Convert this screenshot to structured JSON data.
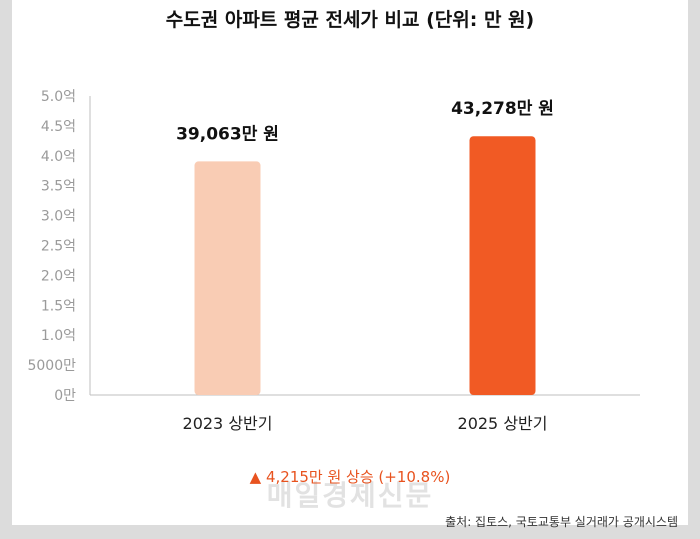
{
  "chart_data": {
    "type": "bar",
    "title": "수도권 아파트 평균 전세가 비교 (단위: 만 원)",
    "categories": [
      "2023 상반기",
      "2025 상반기"
    ],
    "values": [
      39063,
      43278
    ],
    "value_labels": [
      "39,063만 원",
      "43,278만 원"
    ],
    "bar_colors": [
      "#f9ccb4",
      "#f15a24"
    ],
    "ylim": [
      0,
      50000
    ],
    "yticks": [
      0,
      5000,
      10000,
      15000,
      20000,
      25000,
      30000,
      35000,
      40000,
      45000,
      50000
    ],
    "ytick_labels": [
      "0만",
      "5000만",
      "1.0억",
      "1.5억",
      "2.0억",
      "2.5억",
      "3.0억",
      "3.5억",
      "4.0억",
      "4.5억",
      "5.0억"
    ],
    "grid": false
  },
  "annotation": "▲ 4,215만 원 상승 (+10.8%)",
  "watermark": "매일경제신문",
  "source": "출처: 집토스, 국토교통부 실거래가 공개시스템",
  "colors": {
    "annotation": "#e8531f",
    "axis": "#bfbfbf"
  }
}
